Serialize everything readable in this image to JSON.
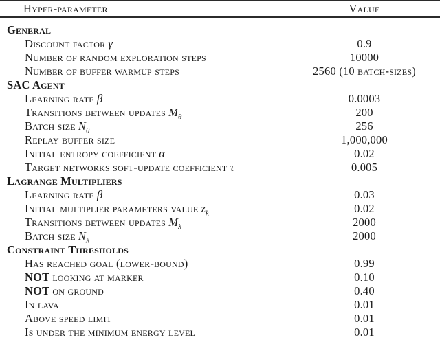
{
  "table": {
    "col1_header": "Hyper-parameter",
    "col2_header": "Value",
    "sections": [
      {
        "title": "General",
        "rows": [
          {
            "label": "Discount factor",
            "math_base": "γ",
            "value": "0.9"
          },
          {
            "label": "Number of random exploration steps",
            "value": "10000"
          },
          {
            "label": "Number of buffer warmup steps",
            "value": "2560 (10 batch-sizes)"
          }
        ]
      },
      {
        "title": "SAC Agent",
        "rows": [
          {
            "label": "Learning rate",
            "math_base": "β",
            "value": "0.0003"
          },
          {
            "label": "Transitions between updates",
            "math_base": "M",
            "math_sub": "θ",
            "value": "200"
          },
          {
            "label": "Batch size",
            "math_base": "N",
            "math_sub": "θ",
            "value": "256"
          },
          {
            "label": "Replay buffer size",
            "value": "1,000,000"
          },
          {
            "label": "Initial entropy coefficient",
            "math_base": "α",
            "value": "0.02"
          },
          {
            "label": "Target networks soft-update coefficient",
            "math_base": "τ",
            "value": "0.005"
          }
        ]
      },
      {
        "title": "Lagrange Multipliers",
        "rows": [
          {
            "label": "Learning rate",
            "math_base": "β",
            "value": "0.03"
          },
          {
            "label": "Initial multiplier parameters value",
            "math_base": "z",
            "math_sub": "k",
            "value": "0.02"
          },
          {
            "label": "Transitions between updates",
            "math_base": "M",
            "math_sub": "λ",
            "value": "2000"
          },
          {
            "label": "Batch size",
            "math_base": "N",
            "math_sub": "λ",
            "value": "2000"
          }
        ]
      },
      {
        "title": "Constraint Thresholds",
        "rows": [
          {
            "label": "Has reached goal (lower-bound)",
            "value": "0.99"
          },
          {
            "bold_prefix": "NOT",
            "label": "looking at marker",
            "value": "0.10"
          },
          {
            "bold_prefix": "NOT",
            "label": "on ground",
            "value": "0.40"
          },
          {
            "label": "In lava",
            "value": "0.01"
          },
          {
            "label": "Above speed limit",
            "value": "0.01"
          },
          {
            "label": "Is under the minimum energy level",
            "value": "0.01"
          }
        ]
      }
    ]
  }
}
